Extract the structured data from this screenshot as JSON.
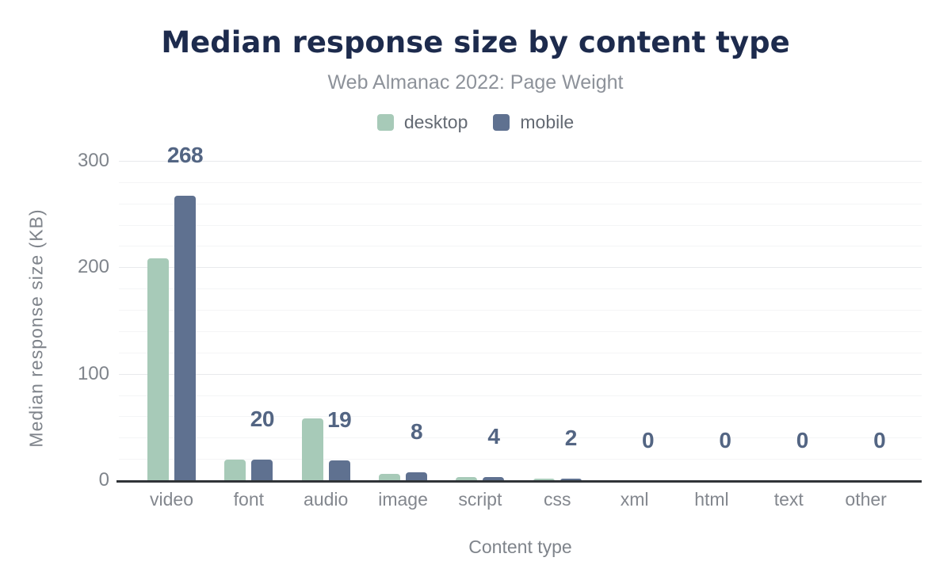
{
  "header": {
    "title": "Median response size by content type",
    "subtitle": "Web Almanac 2022: Page Weight"
  },
  "legend": [
    {
      "label": "desktop",
      "color": "#a7cab8"
    },
    {
      "label": "mobile",
      "color": "#5f7190"
    }
  ],
  "chart_data": {
    "type": "bar",
    "title": "Median response size by content type",
    "subtitle": "Web Almanac 2022: Page Weight",
    "categories": [
      "video",
      "font",
      "audio",
      "image",
      "script",
      "css",
      "xml",
      "html",
      "text",
      "other"
    ],
    "series": [
      {
        "name": "desktop",
        "color": "#a7cab8",
        "values": [
          209,
          20,
          59,
          7,
          4,
          2,
          0,
          0,
          0,
          0
        ]
      },
      {
        "name": "mobile",
        "color": "#5f7190",
        "values": [
          268,
          20,
          19,
          8,
          4,
          2,
          0,
          0,
          0,
          0
        ]
      }
    ],
    "data_labels": {
      "series": "mobile",
      "values": [
        "268",
        "20",
        "19",
        "8",
        "4",
        "2",
        "0",
        "0",
        "0",
        "0"
      ]
    },
    "xlabel": "Content type",
    "ylabel": "Median response size (KB)",
    "yticks": [
      0,
      100,
      200,
      300
    ],
    "ylim": [
      0,
      300
    ],
    "minor_grid_step": 20,
    "grid": true,
    "legend_position": "top"
  },
  "colors": {
    "background": "#ffffff",
    "title": "#1d2b4d",
    "subtitle": "#8d929a",
    "legend_text": "#646a73",
    "axis_text": "#7f848b",
    "data_label": "#536583",
    "grid_major": "#e8eaec",
    "grid_minor": "#f4f5f6",
    "axis_line": "#303438",
    "desktop_bar": "#a7cab8",
    "mobile_bar": "#5f7190"
  }
}
